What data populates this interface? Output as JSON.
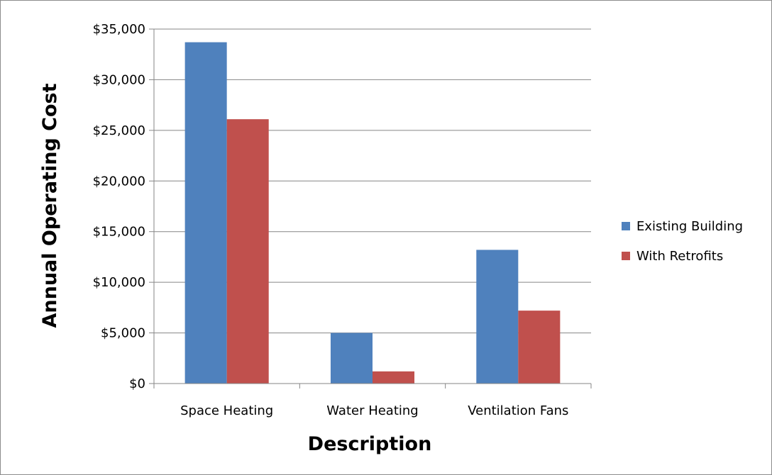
{
  "chart_data": {
    "type": "bar",
    "categories": [
      "Space Heating",
      "Water Heating",
      "Ventilation Fans"
    ],
    "series": [
      {
        "name": "Existing Building",
        "color": "#4f81bd",
        "values": [
          33700,
          5000,
          13200
        ]
      },
      {
        "name": "With Retrofits",
        "color": "#c0504d",
        "values": [
          26100,
          1200,
          7200
        ]
      }
    ],
    "xlabel": "Description",
    "ylabel": "Annual Operating Cost",
    "ylim": [
      0,
      35000
    ],
    "yticks": [
      0,
      5000,
      10000,
      15000,
      20000,
      25000,
      30000,
      35000
    ],
    "ytick_labels": [
      "$0",
      "$5,000",
      "$10,000",
      "$15,000",
      "$20,000",
      "$25,000",
      "$30,000",
      "$35,000"
    ],
    "grid": true,
    "legend_position": "right"
  }
}
